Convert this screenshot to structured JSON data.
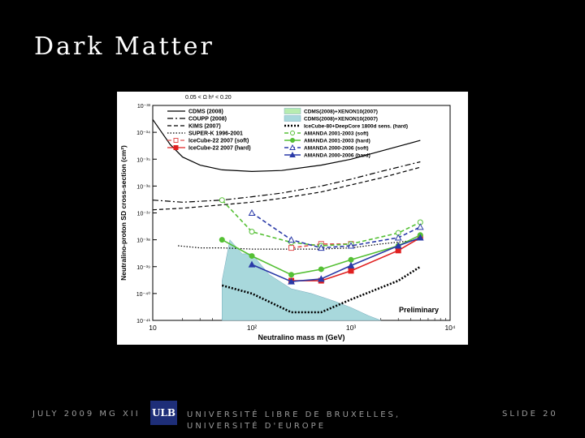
{
  "slide": {
    "title": "Dark Matter",
    "footer_date": "JULY 2009 MG XII",
    "logo_text": "ULB",
    "footer_institution": "UNIVERSITÉ LIBRE DE BRUXELLES, UNIVERSITÉ D'EUROPE",
    "slide_number": "SLIDE 20"
  },
  "chart_data": {
    "type": "line",
    "top_note": "0.05 < Ω h² < 0.20",
    "xlabel": "Neutralino mass m (GeV)",
    "ylabel": "Neutralino-proton SD cross-section (cm²)",
    "xscale": "log",
    "yscale": "log",
    "xlim": [
      10,
      10000
    ],
    "ylim": [
      1e-41,
      1e-33
    ],
    "x_ticks": [
      "10",
      "10²",
      "10³",
      "10⁴"
    ],
    "y_ticks": [
      "10⁻³³",
      "10⁻³⁴",
      "10⁻³⁵",
      "10⁻³⁶",
      "10⁻³⁷",
      "10⁻³⁸",
      "10⁻³⁹",
      "10⁻⁴⁰",
      "10⁻⁴¹"
    ],
    "annotation": "Preliminary",
    "legend_left": [
      "CDMS (2008)",
      "COUPP (2008)",
      "KIMS (2007)",
      "SUPER-K 1996-2001",
      "IceCube-22 2007 (soft)",
      "IceCube-22 2007 (hard)"
    ],
    "legend_right": [
      "CDMS(2008)+XENON10(2007)",
      "CDMS(2008)+XENON10(2007)",
      "IceCube-80+DeepCore 1800d sens. (hard)",
      "AMANDA 2001-2003 (soft)",
      "AMANDA 2001-2003 (hard)",
      "AMANDA 2000-2006 (soft)",
      "AMANDA 2000-2006 (hard)"
    ],
    "series": [
      {
        "name": "CDMS (2008)",
        "color": "#000000",
        "style": "solid",
        "marker": "none",
        "x": [
          10,
          15,
          20,
          30,
          50,
          100,
          200,
          500,
          1000,
          2000,
          5000
        ],
        "y": [
          3e-34,
          3.5e-35,
          1.2e-35,
          6e-36,
          4e-36,
          3.5e-36,
          3.8e-36,
          6e-36,
          1e-35,
          2e-35,
          5e-35
        ]
      },
      {
        "name": "COUPP (2008)",
        "color": "#000000",
        "style": "dashdot",
        "marker": "none",
        "x": [
          10,
          20,
          50,
          100,
          200,
          500,
          1000,
          2000,
          5000
        ],
        "y": [
          3e-37,
          2.5e-37,
          3e-37,
          4e-37,
          5.5e-37,
          1e-36,
          1.8e-36,
          3.5e-36,
          8e-36
        ]
      },
      {
        "name": "KIMS (2007)",
        "color": "#000000",
        "style": "dashed",
        "marker": "none",
        "x": [
          10,
          20,
          50,
          100,
          200,
          500,
          1000,
          2000,
          5000
        ],
        "y": [
          1.3e-37,
          1.5e-37,
          2e-37,
          2.5e-37,
          3.5e-37,
          6e-37,
          1.1e-36,
          2e-36,
          5e-36
        ]
      },
      {
        "name": "SUPER-K 1996-2001",
        "color": "#000000",
        "style": "dotted",
        "marker": "none",
        "x": [
          18,
          30,
          50,
          100,
          200,
          500,
          1000,
          2000,
          5000
        ],
        "y": [
          6e-39,
          5e-39,
          5e-39,
          4.5e-39,
          4.5e-39,
          4.5e-39,
          5e-39,
          7e-39,
          1e-38
        ]
      },
      {
        "name": "IceCube-22 2007 (soft)",
        "color": "#e05050",
        "style": "dashed",
        "marker": "square-open",
        "x": [
          250,
          500,
          1000
        ],
        "y": [
          5e-39,
          7e-39,
          7e-39
        ]
      },
      {
        "name": "IceCube-22 2007 (hard)",
        "color": "#e02020",
        "style": "solid",
        "marker": "square",
        "x": [
          250,
          500,
          1000,
          3000,
          5000
        ],
        "y": [
          3e-40,
          3e-40,
          7e-40,
          4e-39,
          1.2e-38
        ]
      },
      {
        "name": "IceCube-80+DeepCore 1800d sens. (hard)",
        "color": "#000000",
        "style": "bolddotted",
        "marker": "none",
        "x": [
          50,
          100,
          250,
          500,
          1000,
          3000,
          5000
        ],
        "y": [
          2e-40,
          1e-40,
          2e-41,
          2e-41,
          6e-41,
          3e-40,
          1e-39
        ]
      },
      {
        "name": "AMANDA 2001-2003 (soft)",
        "color": "#55c035",
        "style": "dashed",
        "marker": "circle-open",
        "x": [
          50,
          100,
          250,
          500,
          1000,
          3000,
          5000
        ],
        "y": [
          3e-37,
          2e-38,
          8e-39,
          6e-39,
          7e-39,
          1.8e-38,
          4.5e-38
        ]
      },
      {
        "name": "AMANDA 2001-2003 (hard)",
        "color": "#55c035",
        "style": "solid",
        "marker": "circle",
        "x": [
          50,
          100,
          250,
          500,
          1000,
          3000,
          5000
        ],
        "y": [
          1e-38,
          2.5e-39,
          5e-40,
          8e-40,
          1.8e-39,
          6e-39,
          1.5e-38
        ]
      },
      {
        "name": "AMANDA 2000-2006 (soft)",
        "color": "#2a3aa8",
        "style": "dashed",
        "marker": "triangle-open",
        "x": [
          100,
          250,
          500,
          1000,
          3000,
          5000
        ],
        "y": [
          1e-37,
          1e-38,
          5e-39,
          6e-39,
          1.2e-38,
          3e-38
        ]
      },
      {
        "name": "AMANDA 2000-2006 (hard)",
        "color": "#2a3aa8",
        "style": "solid",
        "marker": "triangle",
        "x": [
          100,
          250,
          500,
          1000,
          3000,
          5000
        ],
        "y": [
          1.2e-39,
          2.8e-40,
          3.5e-40,
          1.1e-39,
          6e-39,
          1.2e-38
        ]
      }
    ],
    "shaded_regions": [
      {
        "name": "CDMS(2008)+XENON10(2007)",
        "color": "#a8d8dc",
        "x": [
          50,
          60,
          80,
          100,
          150,
          250,
          400,
          700,
          1000,
          1500,
          2000
        ],
        "y": [
          3e-40,
          1e-38,
          3e-39,
          3e-39,
          5e-40,
          1.5e-40,
          1e-40,
          5e-41,
          3e-41,
          1.5e-41,
          1e-41
        ]
      }
    ]
  }
}
